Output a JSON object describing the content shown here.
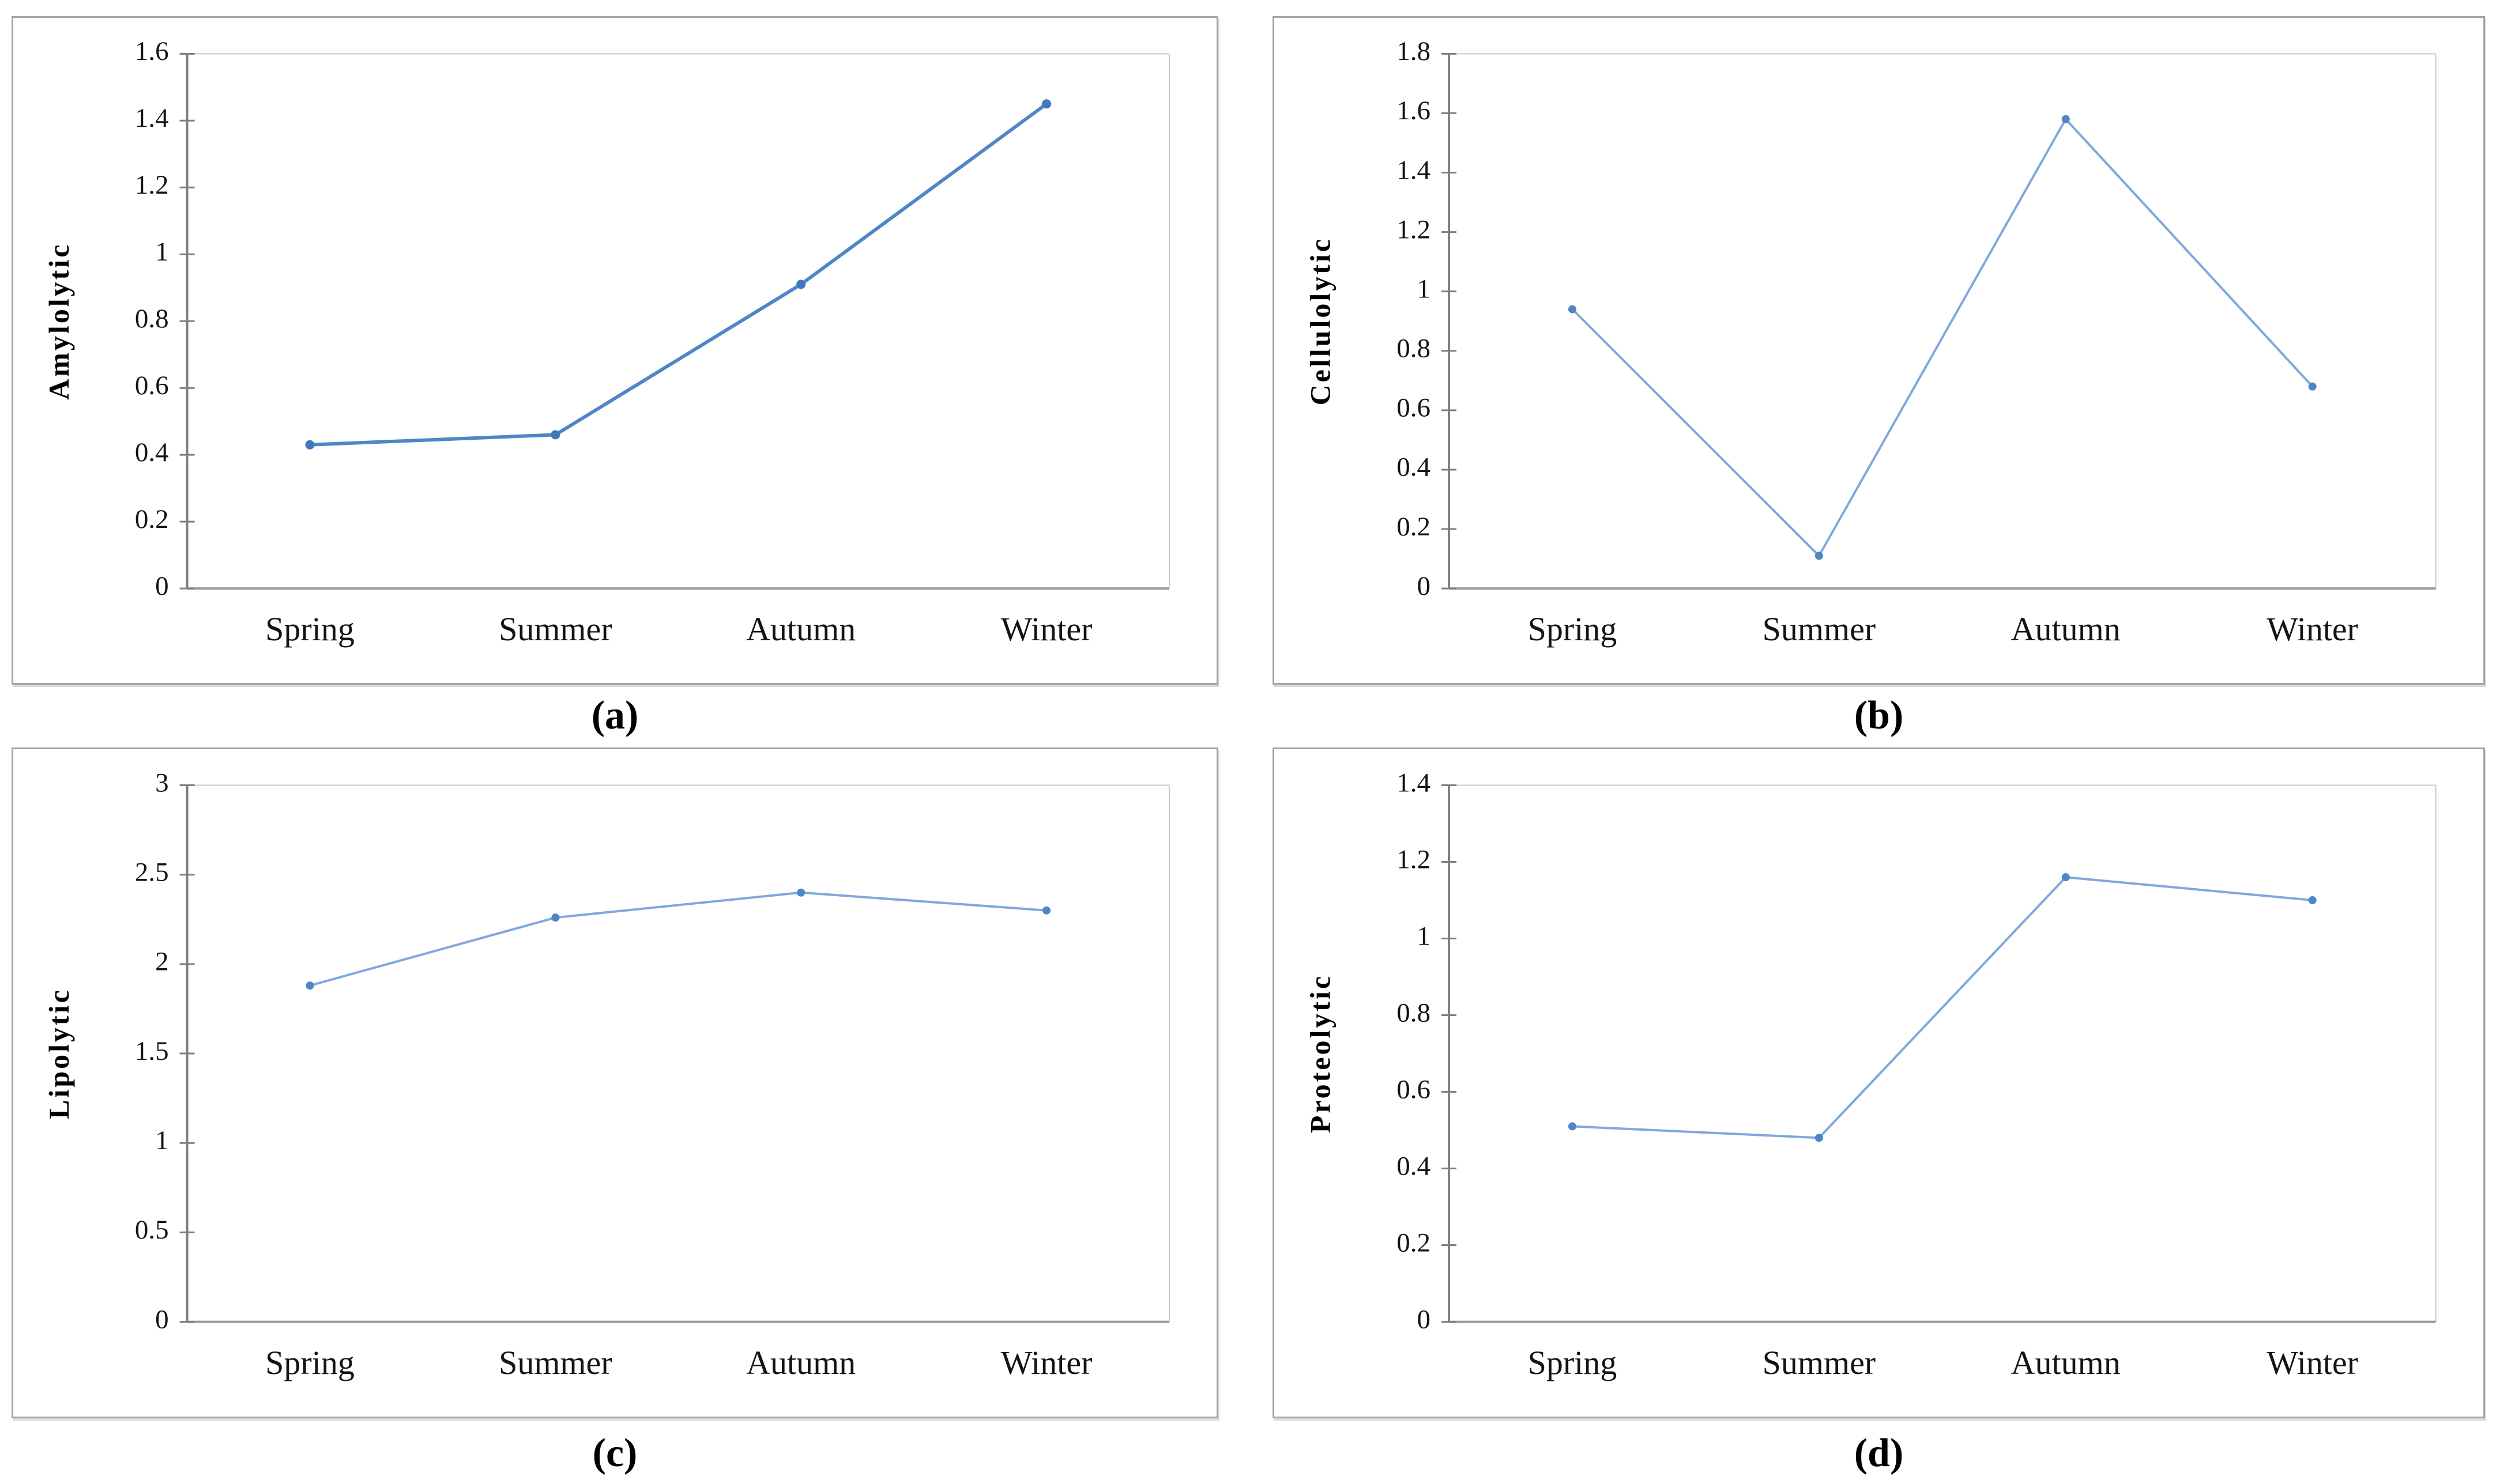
{
  "figure": {
    "layout": "2x2 panel line charts, seasonal enzyme activity",
    "categories": [
      "Spring",
      "Summer",
      "Autumn",
      "Winter"
    ]
  },
  "style": {
    "axis_color": "#7f7f7f",
    "tick_color": "#7f7f7f",
    "plot_border_color": "#c9c9c9",
    "panel_border_color": "#a4a4a4",
    "text_color": "#141414",
    "background": "#ffffff"
  },
  "chart_data": [
    {
      "type": "line",
      "panel": "a",
      "caption": "(a)",
      "title": "",
      "xlabel": "",
      "ylabel": "Amylolytic",
      "categories": [
        "Spring",
        "Summer",
        "Autumn",
        "Winter"
      ],
      "values": [
        0.43,
        0.46,
        0.91,
        1.45
      ],
      "ylim": [
        0,
        1.6
      ],
      "ytick_step": 0.2,
      "yticks": [
        0,
        0.2,
        0.4,
        0.6,
        0.8,
        1,
        1.2,
        1.4,
        1.6
      ],
      "grid": false,
      "legend": "none",
      "line_color": "#4e86c6",
      "marker_color": "#4377bb",
      "line_width": 6,
      "marker_radius": 8
    },
    {
      "type": "line",
      "panel": "b",
      "caption": "(b)",
      "title": "",
      "xlabel": "",
      "ylabel": "Cellulolytic",
      "categories": [
        "Spring",
        "Summer",
        "Autumn",
        "Winter"
      ],
      "values": [
        0.94,
        0.11,
        1.58,
        0.68
      ],
      "ylim": [
        0,
        1.8
      ],
      "ytick_step": 0.2,
      "yticks": [
        0,
        0.2,
        0.4,
        0.6,
        0.8,
        1,
        1.2,
        1.4,
        1.6,
        1.8
      ],
      "grid": false,
      "legend": "none",
      "line_color": "#7fa8dc",
      "marker_color": "#4e86c6",
      "line_width": 4,
      "marker_radius": 7
    },
    {
      "type": "line",
      "panel": "c",
      "caption": "(c)",
      "title": "",
      "xlabel": "",
      "ylabel": "Lipolytic",
      "categories": [
        "Spring",
        "Summer",
        "Autumn",
        "Winter"
      ],
      "values": [
        1.88,
        2.26,
        2.4,
        2.3
      ],
      "ylim": [
        0,
        3
      ],
      "ytick_step": 0.5,
      "yticks": [
        0,
        0.5,
        1,
        1.5,
        2,
        2.5,
        3
      ],
      "grid": false,
      "legend": "none",
      "line_color": "#7fa8dc",
      "marker_color": "#4e86c6",
      "line_width": 4,
      "marker_radius": 7
    },
    {
      "type": "line",
      "panel": "d",
      "caption": "(d)",
      "title": "",
      "xlabel": "",
      "ylabel": "Proteolytic",
      "categories": [
        "Spring",
        "Summer",
        "Autumn",
        "Winter"
      ],
      "values": [
        0.51,
        0.48,
        1.16,
        1.1
      ],
      "ylim": [
        0,
        1.4
      ],
      "ytick_step": 0.2,
      "yticks": [
        0,
        0.2,
        0.4,
        0.6,
        0.8,
        1,
        1.2,
        1.4
      ],
      "grid": false,
      "legend": "none",
      "line_color": "#7fa8dc",
      "marker_color": "#4e86c6",
      "line_width": 4,
      "marker_radius": 7
    }
  ]
}
